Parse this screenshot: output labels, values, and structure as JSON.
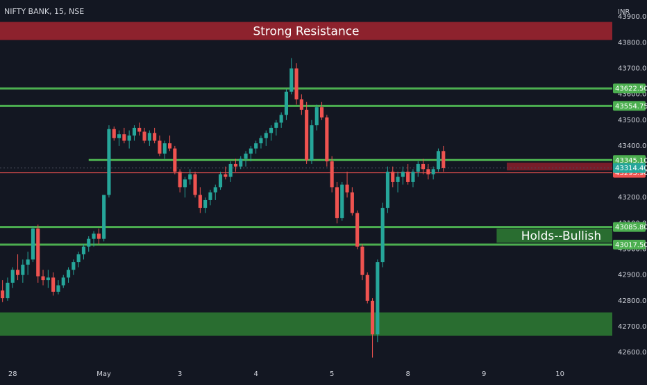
{
  "chart_data": {
    "type": "candlestick",
    "title": "NIFTY BANK, 15, NSE",
    "currency": "INR",
    "grid": false,
    "ylim": [
      42560,
      43965
    ],
    "y_ticks": [
      43900,
      43800,
      43700,
      43600,
      43500,
      43400,
      43300,
      43200,
      43100,
      43000,
      42900,
      42800,
      42700,
      42600
    ],
    "y_tick_labels": [
      "43900.00",
      "43800.00",
      "43700.00",
      "43600.00",
      "43500.00",
      "43400.00",
      "43300.00",
      "43200.00",
      "43100.00",
      "43000.00",
      "42900.00",
      "42800.00",
      "42700.00",
      "42600.00"
    ],
    "x_labels": [
      {
        "label": "28",
        "bar": 2
      },
      {
        "label": "May",
        "bar": 20
      },
      {
        "label": "3",
        "bar": 35
      },
      {
        "label": "4",
        "bar": 50
      },
      {
        "label": "5",
        "bar": 65
      },
      {
        "label": "8",
        "bar": 80
      },
      {
        "label": "9",
        "bar": 95
      },
      {
        "label": "10",
        "bar": 110
      }
    ],
    "candles": [
      [
        42840,
        42880,
        42795,
        42810
      ],
      [
        42810,
        42890,
        42800,
        42870
      ],
      [
        42870,
        42930,
        42850,
        42920
      ],
      [
        42920,
        42980,
        42880,
        42900
      ],
      [
        42900,
        42960,
        42870,
        42940
      ],
      [
        42940,
        42990,
        42900,
        42960
      ],
      [
        42960,
        43090,
        42950,
        43080
      ],
      [
        43080,
        43095,
        42870,
        42895
      ],
      [
        42895,
        42920,
        42860,
        42880
      ],
      [
        42880,
        42920,
        42850,
        42890
      ],
      [
        42890,
        42910,
        42820,
        42835
      ],
      [
        42835,
        42880,
        42825,
        42860
      ],
      [
        42860,
        42900,
        42850,
        42890
      ],
      [
        42890,
        42930,
        42870,
        42920
      ],
      [
        42920,
        42960,
        42900,
        42950
      ],
      [
        42950,
        42990,
        42930,
        42980
      ],
      [
        42980,
        43020,
        42960,
        43010
      ],
      [
        43010,
        43050,
        42990,
        43040
      ],
      [
        43040,
        43070,
        43010,
        43060
      ],
      [
        43060,
        43080,
        43020,
        43040
      ],
      [
        43040,
        43210,
        43030,
        43210
      ],
      [
        43210,
        43480,
        43200,
        43465
      ],
      [
        43465,
        43475,
        43420,
        43430
      ],
      [
        43430,
        43460,
        43400,
        43445
      ],
      [
        43445,
        43470,
        43410,
        43420
      ],
      [
        43420,
        43460,
        43390,
        43440
      ],
      [
        43440,
        43480,
        43420,
        43470
      ],
      [
        43470,
        43490,
        43440,
        43455
      ],
      [
        43455,
        43470,
        43410,
        43420
      ],
      [
        43420,
        43460,
        43400,
        43450
      ],
      [
        43450,
        43470,
        43410,
        43420
      ],
      [
        43420,
        43440,
        43360,
        43370
      ],
      [
        43370,
        43420,
        43350,
        43410
      ],
      [
        43410,
        43440,
        43380,
        43390
      ],
      [
        43390,
        43400,
        43290,
        43300
      ],
      [
        43300,
        43310,
        43220,
        43240
      ],
      [
        43240,
        43280,
        43200,
        43270
      ],
      [
        43270,
        43310,
        43250,
        43290
      ],
      [
        43290,
        43300,
        43200,
        43210
      ],
      [
        43210,
        43240,
        43140,
        43160
      ],
      [
        43160,
        43200,
        43140,
        43190
      ],
      [
        43190,
        43230,
        43170,
        43220
      ],
      [
        43220,
        43250,
        43190,
        43240
      ],
      [
        43240,
        43300,
        43230,
        43290
      ],
      [
        43290,
        43320,
        43270,
        43280
      ],
      [
        43280,
        43340,
        43260,
        43330
      ],
      [
        43330,
        43350,
        43300,
        43320
      ],
      [
        43320,
        43360,
        43310,
        43350
      ],
      [
        43350,
        43380,
        43320,
        43370
      ],
      [
        43370,
        43400,
        43340,
        43390
      ],
      [
        43390,
        43420,
        43370,
        43410
      ],
      [
        43410,
        43440,
        43390,
        43430
      ],
      [
        43430,
        43460,
        43400,
        43450
      ],
      [
        43450,
        43480,
        43420,
        43470
      ],
      [
        43470,
        43500,
        43440,
        43490
      ],
      [
        43490,
        43530,
        43470,
        43520
      ],
      [
        43520,
        43620,
        43500,
        43610
      ],
      [
        43610,
        43740,
        43600,
        43700
      ],
      [
        43700,
        43720,
        43560,
        43580
      ],
      [
        43580,
        43600,
        43520,
        43540
      ],
      [
        43540,
        43570,
        43330,
        43345
      ],
      [
        43345,
        43500,
        43330,
        43480
      ],
      [
        43480,
        43560,
        43460,
        43550
      ],
      [
        43550,
        43570,
        43500,
        43510
      ],
      [
        43510,
        43520,
        43320,
        43340
      ],
      [
        43340,
        43360,
        43220,
        43240
      ],
      [
        43240,
        43260,
        43100,
        43120
      ],
      [
        43120,
        43260,
        43110,
        43250
      ],
      [
        43250,
        43300,
        43200,
        43220
      ],
      [
        43220,
        43240,
        43130,
        43140
      ],
      [
        43140,
        43150,
        43000,
        43010
      ],
      [
        43010,
        43020,
        42880,
        42900
      ],
      [
        42900,
        42910,
        42790,
        42800
      ],
      [
        42800,
        42810,
        42580,
        42670
      ],
      [
        42670,
        42960,
        42640,
        42950
      ],
      [
        42950,
        43180,
        42930,
        43160
      ],
      [
        43160,
        43320,
        43140,
        43300
      ],
      [
        43300,
        43320,
        43240,
        43260
      ],
      [
        43260,
        43300,
        43220,
        43280
      ],
      [
        43280,
        43320,
        43250,
        43300
      ],
      [
        43300,
        43330,
        43250,
        43260
      ],
      [
        43260,
        43310,
        43240,
        43300
      ],
      [
        43300,
        43340,
        43280,
        43330
      ],
      [
        43330,
        43350,
        43290,
        43310
      ],
      [
        43310,
        43330,
        43270,
        43290
      ],
      [
        43290,
        43320,
        43270,
        43310
      ],
      [
        43310,
        43390,
        43300,
        43380
      ],
      [
        43380,
        43400,
        43300,
        43314
      ]
    ],
    "horizontal_levels": [
      {
        "price": 43622.5,
        "label": "43622.50",
        "kind": "green"
      },
      {
        "price": 43554.75,
        "label": "43554.75",
        "kind": "green"
      },
      {
        "price": 43345.1,
        "label": "43345.10",
        "kind": "green"
      },
      {
        "price": 43085.8,
        "label": "43085.80",
        "kind": "green"
      },
      {
        "price": 43017.5,
        "label": "43017.50",
        "kind": "green"
      },
      {
        "price": 43295.9,
        "label": "43295.90",
        "kind": "red"
      }
    ],
    "last_price": {
      "price": 43314.4,
      "label": "43314.40",
      "color": "#26a69a"
    },
    "zones": [
      {
        "from": 43810,
        "to": 43880,
        "label": "Strong Resistance",
        "color": "#a3242f"
      },
      {
        "from": 42665,
        "to": 42755,
        "label": "",
        "color": "#2e7d32"
      },
      {
        "from": 43305,
        "to": 43335,
        "label": "",
        "color": "#8b1e2b",
        "bar_start": 100,
        "bar_end": 130
      },
      {
        "from": 43025,
        "to": 43080,
        "label": "Holds--Bullish",
        "color": "#2e7d32",
        "bar_start": 98,
        "bar_end": 123
      }
    ],
    "colors": {
      "up": "#26a69a",
      "down": "#ef5350",
      "background": "#131722",
      "green_line": "#4caf50",
      "red_line": "#ef5350"
    }
  }
}
